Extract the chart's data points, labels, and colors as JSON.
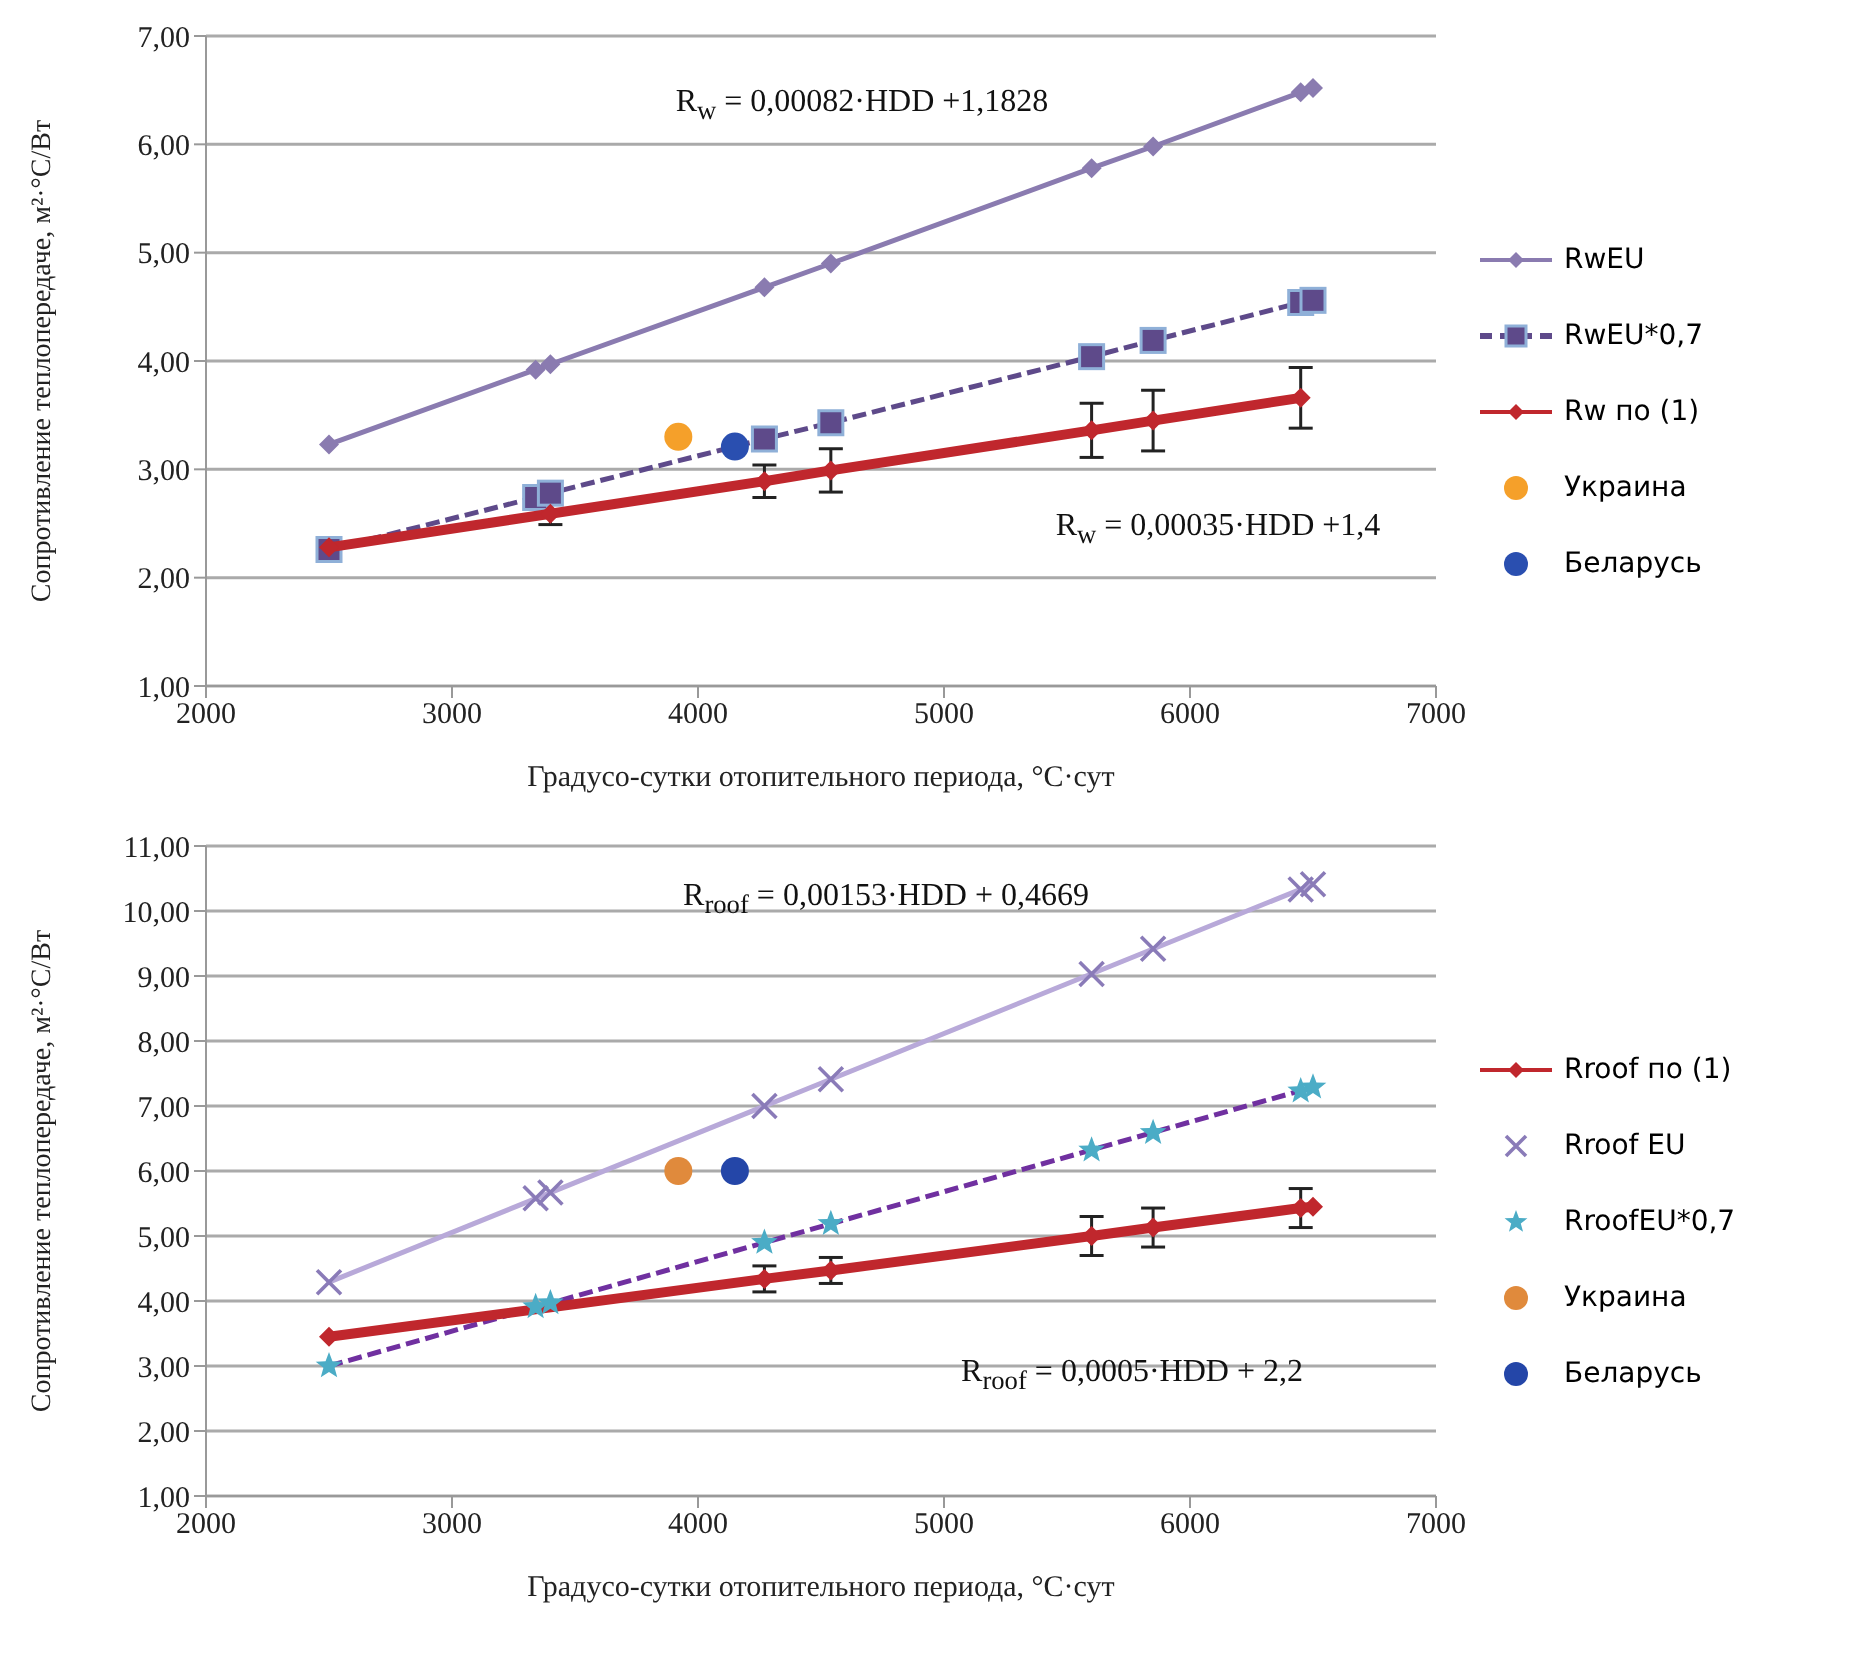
{
  "chart_data": [
    {
      "type": "scatter",
      "xlabel": "Градусо-сутки отопительного периода, °C·сут",
      "ylabel": "Сопротивление теплопередаче, м²·°С/Вт",
      "xlim": [
        2000,
        7000
      ],
      "xticks": [
        2000,
        3000,
        4000,
        5000,
        6000,
        7000
      ],
      "ylim": [
        1,
        7
      ],
      "yticks": [
        {
          "value": 1,
          "label": "1,00"
        },
        {
          "value": 2,
          "label": "2,00"
        },
        {
          "value": 3,
          "label": "3,00"
        },
        {
          "value": 4,
          "label": "4,00"
        },
        {
          "value": 5,
          "label": "5,00"
        },
        {
          "value": 6,
          "label": "6,00"
        },
        {
          "value": 7,
          "label": "7,00"
        }
      ],
      "grid": "y",
      "legend": "right",
      "annotations": [
        "R$_{w}$ = 0,00082·HDD +1,1828",
        "R$_{w}$ = 0,00035·HDD +1,4"
      ],
      "series": [
        {
          "type": "line",
          "name": "RwEU",
          "color": "#8a7bb0",
          "marker": "diamond",
          "line_style": "solid",
          "x": [
            2500,
            3340,
            3400,
            4270,
            4540,
            5600,
            5850,
            6450,
            6500
          ],
          "values": [
            3.23,
            3.92,
            3.97,
            4.68,
            4.9,
            5.78,
            5.98,
            6.48,
            6.52
          ]
        },
        {
          "type": "line",
          "name": "RwEU*0,7",
          "color": "#5e4a8a",
          "marker": "square",
          "line_style": "dashed",
          "x": [
            2500,
            3340,
            3400,
            4270,
            4540,
            5600,
            5850,
            6450,
            6500
          ],
          "values": [
            2.26,
            2.74,
            2.78,
            3.28,
            3.43,
            4.04,
            4.19,
            4.54,
            4.56
          ]
        },
        {
          "type": "line",
          "name": "Rw по (1)",
          "color": "#c0272d",
          "marker": "diamond",
          "line_style": "solid",
          "x": [
            2500,
            3400,
            4270,
            4540,
            5600,
            5850,
            6450
          ],
          "values": [
            2.28,
            2.59,
            2.89,
            2.99,
            3.36,
            3.45,
            3.66
          ],
          "errors": [
            null,
            0.1,
            0.15,
            0.2,
            0.25,
            0.28,
            0.28
          ]
        },
        {
          "type": "scatter",
          "name": "Украина",
          "color": "#f5a02a",
          "marker": "circle",
          "x": [
            3920
          ],
          "values": [
            3.3
          ]
        },
        {
          "type": "scatter",
          "name": "Беларусь",
          "color": "#2a4fb0",
          "marker": "circle",
          "x": [
            4150
          ],
          "values": [
            3.21
          ]
        }
      ]
    },
    {
      "type": "scatter",
      "xlabel": "Градусо-сутки отопительного периода, °С·сут",
      "ylabel": "Сопротивление теплопередаче, м²·°С/Вт",
      "xlim": [
        2000,
        7000
      ],
      "xticks": [
        2000,
        3000,
        4000,
        5000,
        6000,
        7000
      ],
      "ylim": [
        1,
        11
      ],
      "yticks": [
        {
          "value": 1,
          "label": "1,00"
        },
        {
          "value": 2,
          "label": "2,00"
        },
        {
          "value": 3,
          "label": "3,00"
        },
        {
          "value": 4,
          "label": "4,00"
        },
        {
          "value": 5,
          "label": "5,00"
        },
        {
          "value": 6,
          "label": "6,00"
        },
        {
          "value": 7,
          "label": "7,00"
        },
        {
          "value": 8,
          "label": "8,00"
        },
        {
          "value": 9,
          "label": "9,00"
        },
        {
          "value": 10,
          "label": "10,00"
        },
        {
          "value": 11,
          "label": "11,00"
        }
      ],
      "grid": "y",
      "legend": "right",
      "annotations": [
        "R$_{roof}$ = 0,00153·HDD + 0,4669",
        "R$_{roof}$ = 0,0005·HDD + 2,2"
      ],
      "series": [
        {
          "type": "line",
          "color": "#b8a9d9",
          "marker": "none",
          "line_style": "solid",
          "x": [
            2500,
            6500
          ],
          "values": [
            4.29,
            10.41
          ]
        },
        {
          "type": "line",
          "color": "#7030a0",
          "marker": "none",
          "line_style": "dashed",
          "x": [
            2500,
            6500
          ],
          "values": [
            3.0,
            7.29
          ]
        },
        {
          "type": "line",
          "name": "Rroof по (1)",
          "color": "#c0272d",
          "marker": "diamond",
          "line_style": "solid",
          "x": [
            2500,
            4270,
            4540,
            5600,
            5850,
            6450,
            6500
          ],
          "values": [
            3.45,
            4.34,
            4.47,
            5.0,
            5.13,
            5.43,
            5.45
          ],
          "errors": [
            null,
            0.2,
            0.2,
            0.3,
            0.3,
            0.3,
            null
          ]
        },
        {
          "type": "scatter",
          "name": "Rroof EU",
          "color": "#8a7bb8",
          "marker": "cross",
          "x": [
            2500,
            3340,
            3400,
            4270,
            4540,
            5600,
            5850,
            6450,
            6500
          ],
          "values": [
            4.29,
            5.58,
            5.67,
            7.0,
            7.41,
            9.03,
            9.42,
            10.33,
            10.41
          ]
        },
        {
          "type": "scatter",
          "name": "RroofEU*0,7",
          "color": "#4bacc6",
          "marker": "star",
          "x": [
            2500,
            3340,
            3400,
            4270,
            4540,
            5600,
            5850,
            6450,
            6500
          ],
          "values": [
            3.0,
            3.91,
            3.97,
            4.9,
            5.19,
            6.32,
            6.59,
            7.23,
            7.29
          ]
        },
        {
          "type": "scatter",
          "name": "Украина",
          "color": "#e08a3c",
          "marker": "circle",
          "x": [
            3920
          ],
          "values": [
            6.0
          ]
        },
        {
          "type": "scatter",
          "name": "Беларусь",
          "color": "#2446a8",
          "marker": "circle",
          "x": [
            4150
          ],
          "values": [
            6.0
          ]
        }
      ]
    }
  ]
}
